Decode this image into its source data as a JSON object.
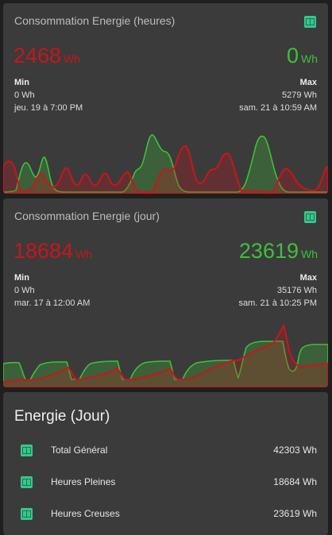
{
  "colors": {
    "red": "#c8161b",
    "green": "#3cc13b",
    "card": "#3b3b3b",
    "icon": "#34c98e"
  },
  "icon": "meter-icon",
  "card_hours": {
    "title": "Consommation Energie (heures)",
    "left_value": "2468",
    "left_unit": "Wh",
    "right_value": "0",
    "right_unit": "Wh",
    "min_label": "Min",
    "min_value": "0 Wh",
    "min_time": "jeu. 19 à 7:00 PM",
    "max_label": "Max",
    "max_value": "5279 Wh",
    "max_time": "sam. 21 à 10:59 AM"
  },
  "card_day": {
    "title": "Consommation Energie (jour)",
    "left_value": "18684",
    "left_unit": "Wh",
    "right_value": "23619",
    "right_unit": "Wh",
    "min_label": "Min",
    "min_value": "0 Wh",
    "min_time": "mar. 17 à 12:00 AM",
    "max_label": "Max",
    "max_value": "35176 Wh",
    "max_time": "sam. 21 à 10:25 PM"
  },
  "energy_card": {
    "title": "Energie (Jour)",
    "rows": [
      {
        "name": "Total Général",
        "value": "42303 Wh"
      },
      {
        "name": "Heures Pleines",
        "value": "18684 Wh"
      },
      {
        "name": "Heures Creuses",
        "value": "23619 Wh"
      }
    ]
  }
}
